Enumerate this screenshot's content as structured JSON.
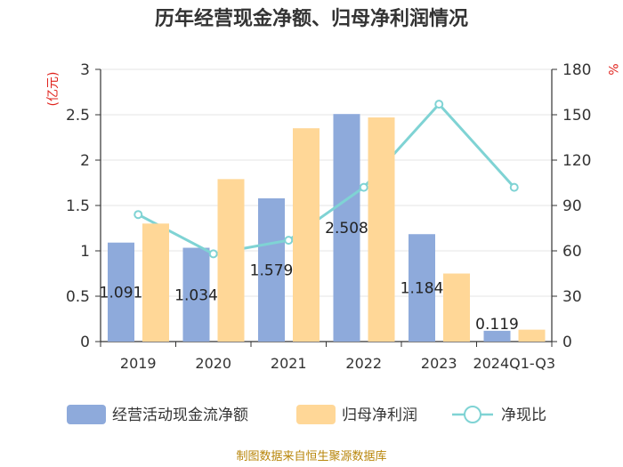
{
  "chart_data": {
    "type": "bar",
    "title": "历年经营现金净额、归母净利润情况",
    "categories": [
      "2019",
      "2020",
      "2021",
      "2022",
      "2023",
      "2024Q1-Q3"
    ],
    "series": [
      {
        "name": "经营活动现金流净额",
        "type": "bar",
        "axis": "left",
        "color": "#8eaadb",
        "values": [
          1.091,
          1.034,
          1.579,
          2.508,
          1.184,
          0.119
        ],
        "data_labels": [
          "1.091",
          "1.034",
          "1.579",
          "2.508",
          "1.184",
          "0.119"
        ]
      },
      {
        "name": "归母净利润",
        "type": "bar",
        "axis": "left",
        "color": "#ffd797",
        "values": [
          1.3,
          1.79,
          2.35,
          2.47,
          0.75,
          0.13
        ]
      },
      {
        "name": "净现比",
        "type": "line",
        "axis": "right",
        "color": "#7fd3d4",
        "values": [
          84,
          58,
          67,
          102,
          157,
          102
        ]
      }
    ],
    "y_left": {
      "label": "(亿元)",
      "ylim": [
        0,
        3
      ],
      "ticks": [
        "0",
        "0.5",
        "1",
        "1.5",
        "2",
        "2.5",
        "3"
      ]
    },
    "y_right": {
      "label": "%",
      "ylim": [
        0,
        180
      ],
      "ticks": [
        "0",
        "30",
        "60",
        "90",
        "120",
        "150",
        "180"
      ]
    },
    "legend": {
      "position": "bottom",
      "items": [
        "经营活动现金流净额",
        "归母净利润",
        "净现比"
      ]
    },
    "source": "制图数据来自恒生聚源数据库",
    "grid": true
  }
}
